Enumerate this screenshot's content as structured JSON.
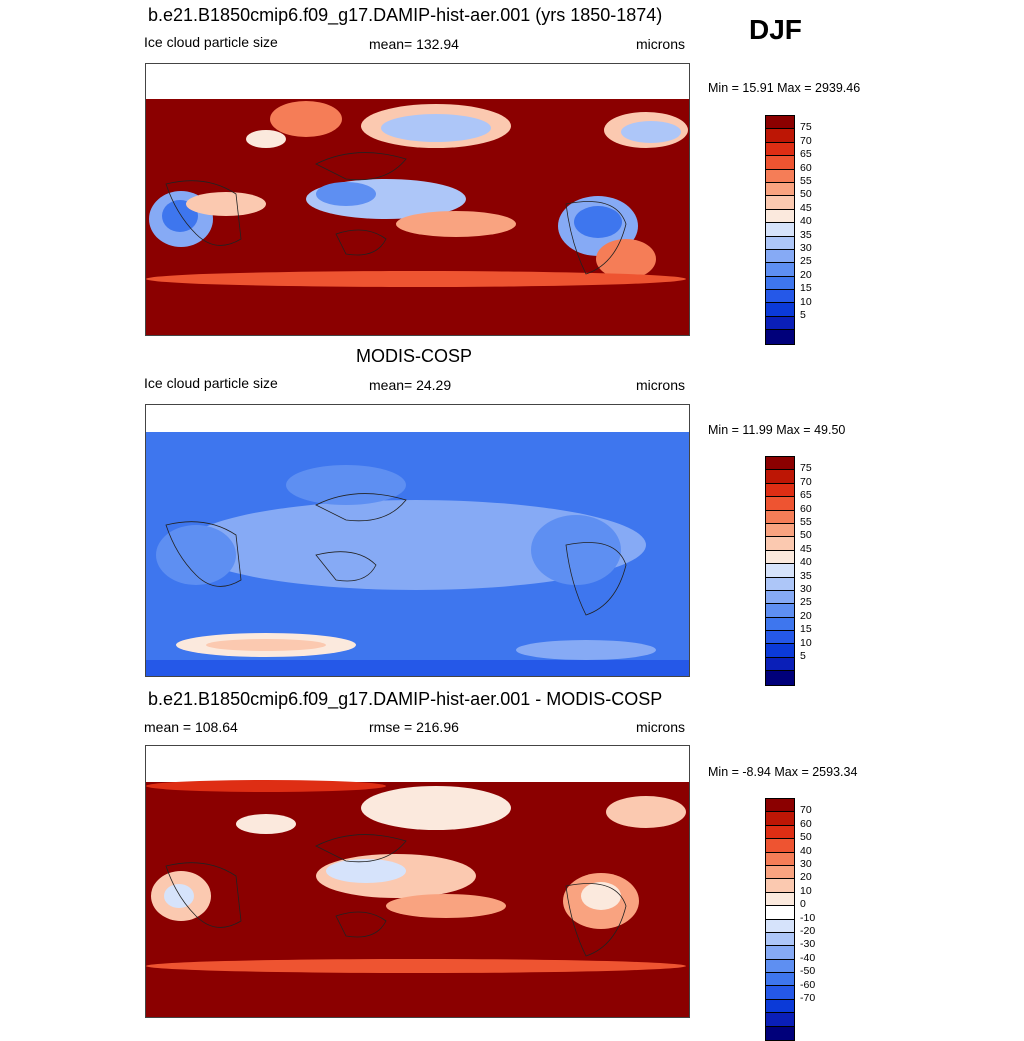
{
  "season": "DJF",
  "colors": {
    "abs_scale": [
      "#00007a",
      "#0a1fb8",
      "#0b3ad8",
      "#2558e8",
      "#3e76ee",
      "#5e8ff2",
      "#86aaf5",
      "#adc6f8",
      "#d6e3fb",
      "#fbe9dd",
      "#fbc9b0",
      "#f9a380",
      "#f57d57",
      "#ee5431",
      "#de2e14",
      "#bd1605",
      "#8b0000"
    ],
    "diff_scale": [
      "#00007a",
      "#0a1fb8",
      "#0b3ad8",
      "#2558e8",
      "#3e76ee",
      "#5e8ff2",
      "#86aaf5",
      "#adc6f8",
      "#d6e3fb",
      "#ffffff",
      "#fbe9dd",
      "#fbc9b0",
      "#f9a380",
      "#f57d57",
      "#ee5431",
      "#de2e14",
      "#bd1605",
      "#8b0000"
    ]
  },
  "panels": [
    {
      "title": "b.e21.B1850cmip6.f09_g17.DAMIP-hist-aer.001 (yrs 1850-1874)",
      "left": "Ice cloud particle size",
      "center": "mean= 132.94",
      "right": "microns",
      "minmax": "Min =  15.91 Max = 2939.46",
      "scale": "abs",
      "labels": [
        "75",
        "70",
        "65",
        "60",
        "55",
        "50",
        "45",
        "40",
        "35",
        "30",
        "25",
        "20",
        "15",
        "10",
        "5"
      ]
    },
    {
      "title": "MODIS-COSP",
      "left": "Ice cloud particle size",
      "center": "mean=  24.29",
      "right": "microns",
      "minmax": "Min =  11.99 Max =  49.50",
      "scale": "abs",
      "labels": [
        "75",
        "70",
        "65",
        "60",
        "55",
        "50",
        "45",
        "40",
        "35",
        "30",
        "25",
        "20",
        "15",
        "10",
        "5"
      ]
    },
    {
      "title": "b.e21.B1850cmip6.f09_g17.DAMIP-hist-aer.001 - MODIS-COSP",
      "left": "mean = 108.64",
      "center": "rmse = 216.96",
      "right": "microns",
      "minmax": "Min =  -8.94 Max = 2593.34",
      "scale": "diff",
      "labels": [
        "70",
        "60",
        "50",
        "40",
        "30",
        "20",
        "10",
        "0",
        "-10",
        "-20",
        "-30",
        "-40",
        "-50",
        "-60",
        "-70"
      ]
    }
  ]
}
